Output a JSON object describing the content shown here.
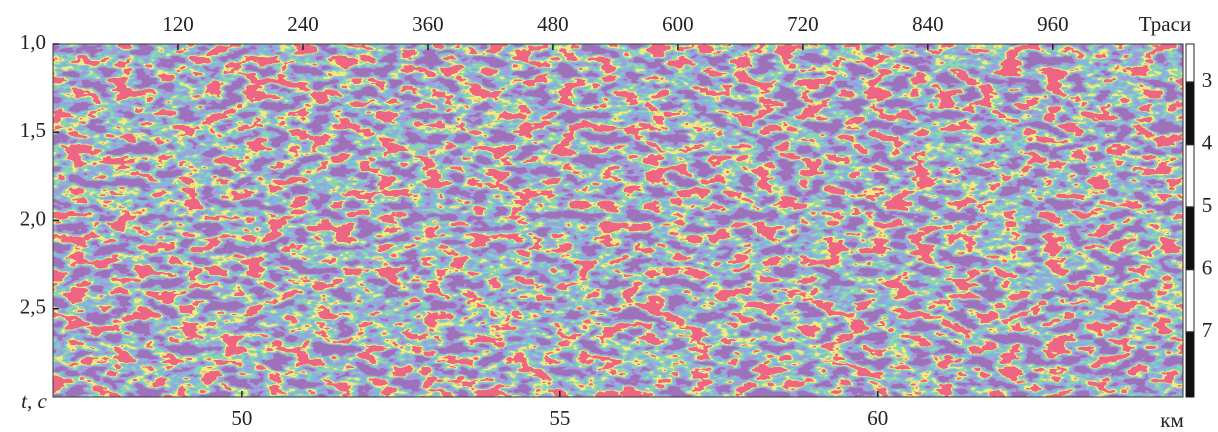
{
  "chart_data": {
    "type": "heatmap",
    "x2_label": "Траси",
    "x2lim": [
      0,
      1085
    ],
    "x2ticks": [
      120,
      240,
      360,
      480,
      600,
      720,
      840,
      960
    ],
    "y_label": "t, c",
    "ylim": [
      1.0,
      3.0
    ],
    "yticks": [
      {
        "value": 1.0,
        "label": "1,0"
      },
      {
        "value": 1.5,
        "label": "1,5"
      },
      {
        "value": 2.0,
        "label": "2,0"
      },
      {
        "value": 2.5,
        "label": "2,5"
      }
    ],
    "x_label": "км",
    "xlim": [
      47.03,
      64.8
    ],
    "xticks": [
      50,
      55,
      60
    ],
    "y2lim": [
      2.39,
      8.04
    ],
    "y2ticks": [
      3,
      4,
      5,
      6,
      7
    ]
  }
}
